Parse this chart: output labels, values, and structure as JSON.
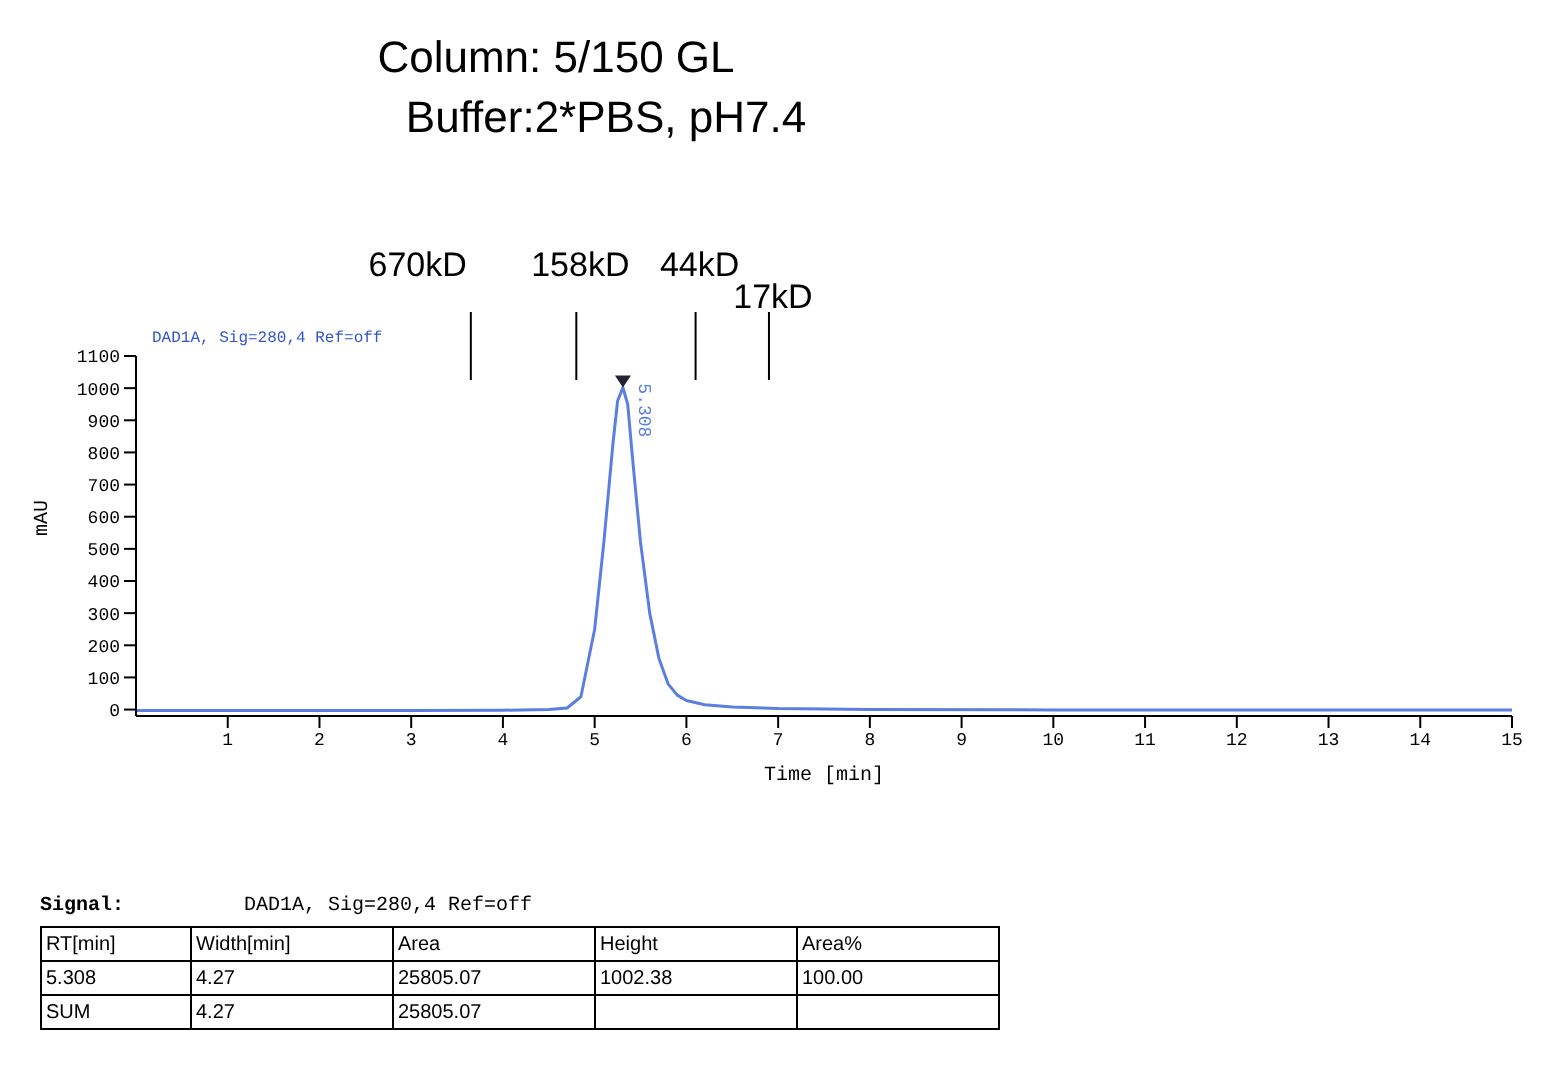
{
  "chart_data": {
    "type": "line",
    "title": "Column: 5/150 GL",
    "subtitle": "Buffer:2*PBS,  pH7.4",
    "xlabel": "Time [min]",
    "ylabel": "mAU",
    "x": [
      0,
      1,
      2,
      3,
      4,
      4.5,
      4.7,
      4.85,
      5.0,
      5.1,
      5.2,
      5.25,
      5.308,
      5.36,
      5.42,
      5.5,
      5.6,
      5.7,
      5.8,
      5.9,
      6.0,
      6.2,
      6.5,
      7,
      8,
      10,
      12,
      14,
      15
    ],
    "series": [
      {
        "color": "#5b7fe0",
        "values": [
          -3,
          -3,
          -3,
          -3,
          -2,
          0,
          5,
          40,
          250,
          520,
          830,
          960,
          1002,
          950,
          760,
          520,
          300,
          160,
          80,
          45,
          28,
          15,
          8,
          3,
          0,
          -1,
          -1,
          -1,
          -1
        ]
      }
    ],
    "xlim": [
      0,
      15
    ],
    "xticks": [
      1,
      2,
      3,
      4,
      5,
      6,
      7,
      8,
      9,
      10,
      11,
      12,
      13,
      14,
      15
    ],
    "ylim": [
      -20,
      1100
    ],
    "yticks": [
      0,
      100,
      200,
      300,
      400,
      500,
      600,
      700,
      800,
      900,
      1000,
      1100
    ],
    "grid": false,
    "legend": false,
    "marker": "none",
    "line_style": "solid",
    "ref_lines": [
      {
        "axis": "x",
        "value": 3.65,
        "label": "670kD"
      },
      {
        "axis": "x",
        "value": 4.8,
        "label": "158kD"
      },
      {
        "axis": "x",
        "value": 6.1,
        "label": "44kD"
      },
      {
        "axis": "x",
        "value": 6.9,
        "label": "17kD"
      }
    ],
    "annotations": [
      {
        "text": "5.308",
        "x": 5.308,
        "y": 1002.38
      },
      "DAD1A, Sig=280,4  Ref=off",
      "Signal:",
      "DAD1A, Sig=280,4  Ref=off",
      "RT[min]",
      "Width[min]",
      "Area",
      "Height",
      "Area%",
      "5.308",
      "4.27",
      "25805.07",
      "1002.38",
      "100.00",
      "SUM",
      "4.27",
      "25805.07"
    ]
  }
}
